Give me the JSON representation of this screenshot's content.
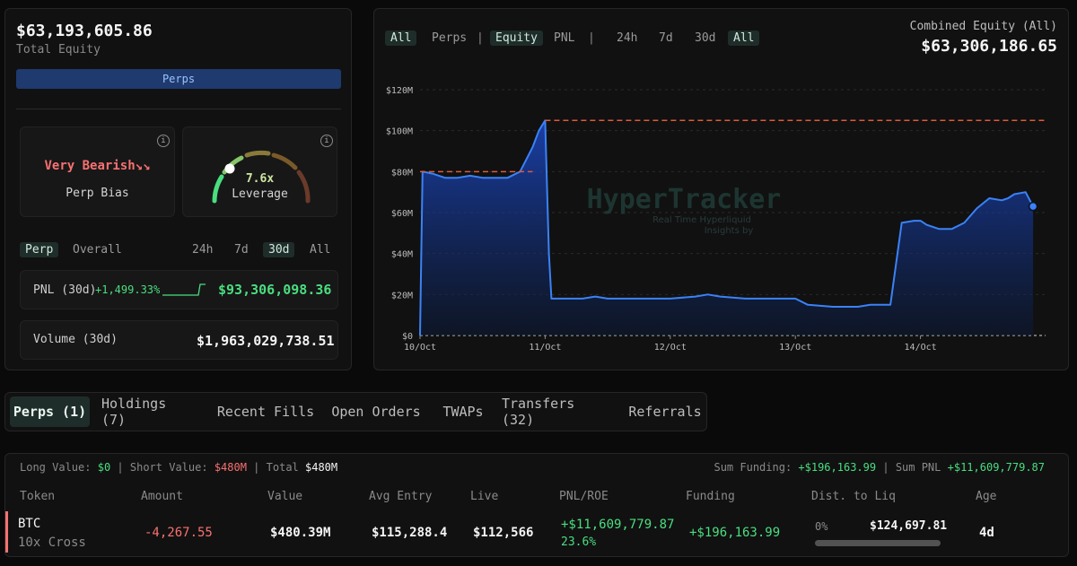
{
  "equity_panel": {
    "total_equity_value": "$63,193,605.86",
    "total_equity_label": "Total Equity",
    "perps_bar_label": "Perps",
    "bias_card": {
      "value": "Very Bearish",
      "arrows": "↘↘",
      "label": "Perp Bias",
      "info": "i"
    },
    "leverage_card": {
      "value": "7.6x",
      "label": "Leverage",
      "info": "i",
      "level_fraction": 0.22
    },
    "filter_tabs": [
      "Perp",
      "Overall"
    ],
    "period_tabs": [
      "24h",
      "7d",
      "30d",
      "All"
    ],
    "active_period": "30d",
    "pnl_row": {
      "label": "PNL (30d)",
      "pct": "+1,499.33%",
      "value": "$93,306,098.36"
    },
    "volume_row": {
      "label": "Volume (30d)",
      "value": "$1,963,029,738.51"
    }
  },
  "chart_panel": {
    "toolbar": {
      "group1": [
        "All",
        "Perps"
      ],
      "sep1": "|",
      "group2": [
        "Equity",
        "PNL"
      ],
      "sep2": "|",
      "group3": [
        "24h",
        "7d",
        "30d",
        "All"
      ]
    },
    "combined_label": "Combined Equity (All)",
    "combined_value": "$63,306,186.65",
    "watermark_title": "HyperTracker",
    "watermark_sub1": "Real Time Hyperliquid",
    "watermark_sub2": "Insights by"
  },
  "chart_data": {
    "type": "area",
    "yticks": [
      "$120M",
      "$100M",
      "$80M",
      "$60M",
      "$40M",
      "$20M",
      "$0"
    ],
    "ylim": [
      0,
      120
    ],
    "xticks": [
      "10/Oct",
      "11/Oct",
      "12/Oct",
      "13/Oct",
      "14/Oct"
    ],
    "xlim": [
      10,
      15.0
    ],
    "series": [
      {
        "x": [
          10.0,
          10.02,
          10.1,
          10.2,
          10.3,
          10.4,
          10.5,
          10.6,
          10.7,
          10.8,
          10.9,
          10.95,
          11.0,
          11.03,
          11.05,
          11.1,
          11.2,
          11.3,
          11.4,
          11.5,
          11.6,
          11.8,
          12.0,
          12.2,
          12.3,
          12.4,
          12.6,
          12.8,
          12.9,
          13.0,
          13.1,
          13.3,
          13.4,
          13.5,
          13.6,
          13.7,
          13.73,
          13.76,
          13.85,
          13.95,
          14.0,
          14.05,
          14.15,
          14.25,
          14.35,
          14.45,
          14.55,
          14.65,
          14.7,
          14.75,
          14.84,
          14.9
        ],
        "values": [
          0,
          80,
          79,
          77,
          77,
          78,
          77,
          77,
          77,
          80,
          92,
          100,
          105,
          40,
          18,
          18,
          18,
          18,
          19,
          18,
          18,
          18,
          18,
          19,
          20,
          19,
          18,
          18,
          18,
          18,
          15,
          14,
          14,
          14,
          15,
          15,
          15,
          15,
          55,
          56,
          56,
          54,
          52,
          52,
          55,
          62,
          67,
          66,
          67,
          69,
          70,
          63
        ]
      }
    ],
    "reference_lines": [
      {
        "y": 80,
        "x_from": 10.0,
        "x_to": 10.9
      },
      {
        "y": 105,
        "x_from": 11.0,
        "x_to": 15.0
      }
    ],
    "end_point": {
      "x": 14.9,
      "y": 63
    },
    "grid": true
  },
  "tabs": {
    "items": [
      "Perps (1)",
      "Holdings (7)",
      "Recent Fills",
      "Open Orders",
      "TWAPs",
      "Transfers (32)",
      "Referrals"
    ],
    "active": "Perps (1)"
  },
  "positions": {
    "summary": {
      "long_label": "Long Value:",
      "long_value": "$0",
      "short_label": "Short Value:",
      "short_value": "$480M",
      "total_label": "Total",
      "total_value": "$480M",
      "sum_funding_label": "Sum Funding:",
      "sum_funding_value": "+$196,163.99",
      "sum_pnl_label": "Sum PNL",
      "sum_pnl_value": "+$11,609,779.87"
    },
    "columns": [
      "Token",
      "Amount",
      "Value",
      "Avg Entry",
      "Live",
      "PNL/ROE",
      "Funding",
      "Dist. to Liq",
      "Age"
    ],
    "rows": [
      {
        "token": "BTC",
        "leverage": "10x Cross",
        "amount": "-4,267.55",
        "value": "$480.39M",
        "avg_entry": "$115,288.4",
        "live": "$112,566",
        "pnl": "+$11,609,779.87",
        "roe": "23.6%",
        "funding": "+$196,163.99",
        "dist_pct": "0%",
        "liq_price": "$124,697.81",
        "age": "4d"
      }
    ]
  }
}
